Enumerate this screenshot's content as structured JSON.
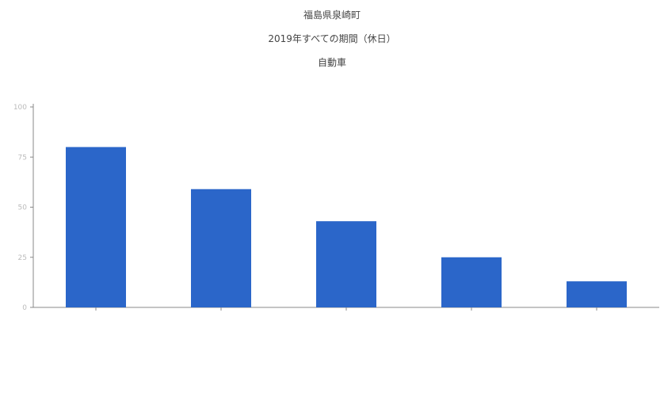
{
  "title": "福島県泉崎町",
  "subtitle": "2019年すべての期間（休日）",
  "subtitle2": "自動車",
  "colors": {
    "bar": "#2b66c9",
    "axis": "#888888"
  },
  "chart_data": {
    "type": "bar",
    "title": "福島県泉崎町",
    "categories": [
      "",
      "",
      "",
      "",
      ""
    ],
    "values": [
      80,
      59,
      43,
      25,
      13
    ],
    "ylim": [
      0,
      100
    ],
    "yticks": [
      0,
      25,
      50,
      75,
      100
    ],
    "xlabel": "",
    "ylabel": "",
    "grid": false,
    "legend": "none"
  }
}
